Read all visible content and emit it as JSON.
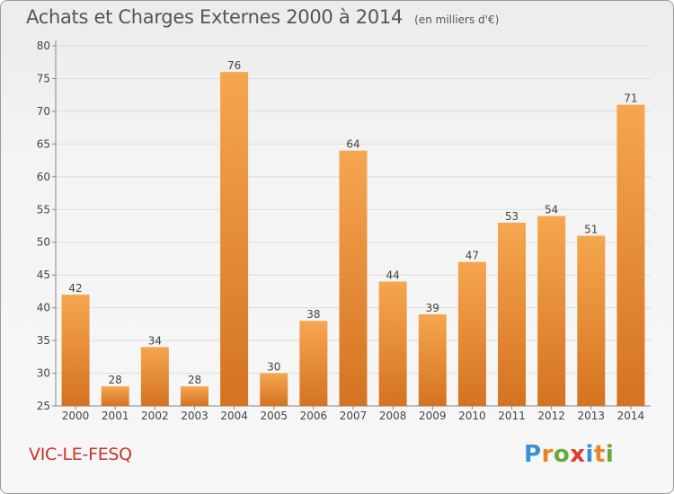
{
  "header": {
    "title": "Achats et Charges Externes 2000 à 2014",
    "subtitle": "(en milliers d'€)"
  },
  "commune": "VIC-LE-FESQ",
  "logo": {
    "text": "Proxiti",
    "letters": [
      {
        "char": "P",
        "color": "#3a8fd6"
      },
      {
        "char": "r",
        "color": "#e8852a"
      },
      {
        "char": "o",
        "color": "#6aa83a"
      },
      {
        "char": "x",
        "color": "#e03a2c"
      },
      {
        "char": "i",
        "color": "#3a8fd6"
      },
      {
        "char": "t",
        "color": "#e8852a"
      },
      {
        "char": "i",
        "color": "#6aa83a"
      }
    ]
  },
  "colors": {
    "bar_light": "#f6a650",
    "bar_dark": "#d47322",
    "axis": "#888888",
    "grid": "#dddddd",
    "text": "#444444"
  },
  "chart_data": {
    "type": "bar",
    "categories": [
      "2000",
      "2001",
      "2002",
      "2003",
      "2004",
      "2005",
      "2006",
      "2007",
      "2008",
      "2009",
      "2010",
      "2011",
      "2012",
      "2013",
      "2014"
    ],
    "values": [
      42,
      28,
      34,
      28,
      76,
      30,
      38,
      64,
      44,
      39,
      47,
      53,
      54,
      51,
      71
    ],
    "title": "Achats et Charges Externes 2000 à 2014",
    "subtitle": "(en milliers d'€)",
    "ylim": [
      25,
      80
    ],
    "yticks": [
      25,
      30,
      35,
      40,
      45,
      50,
      55,
      60,
      65,
      70,
      75,
      80
    ],
    "grid": true
  }
}
